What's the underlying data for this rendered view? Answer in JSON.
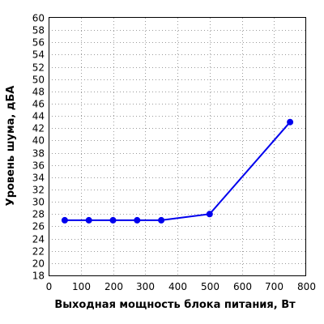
{
  "chart_data": {
    "type": "line",
    "title": "",
    "xlabel": "Выходная мощность блока питания, Вт",
    "ylabel": "Уровень шума, дБА",
    "xlim": [
      0,
      800
    ],
    "ylim": [
      18,
      60
    ],
    "xticks": [
      0,
      100,
      200,
      300,
      400,
      500,
      600,
      700,
      800
    ],
    "yticks": [
      18,
      20,
      22,
      24,
      26,
      28,
      30,
      32,
      34,
      36,
      38,
      40,
      42,
      44,
      46,
      48,
      50,
      52,
      54,
      56,
      58,
      60
    ],
    "grid": true,
    "series": [
      {
        "color": "#0000ee",
        "x": [
          50,
          125,
          200,
          275,
          350,
          500,
          750
        ],
        "y": [
          27,
          27,
          27,
          27,
          27,
          28,
          43
        ]
      }
    ]
  }
}
